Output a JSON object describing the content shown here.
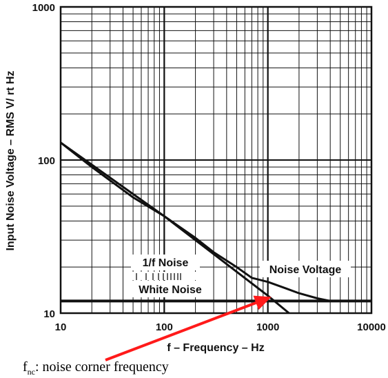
{
  "chart_data": {
    "type": "line",
    "xlabel": "f – Frequency – Hz",
    "ylabel": "Input Noise Voltage – RMS V/ rt Hz",
    "x_scale": "log",
    "y_scale": "log",
    "xlim": [
      10,
      10000
    ],
    "ylim": [
      10,
      1000
    ],
    "grid": true,
    "x_ticks": [
      "10",
      "100",
      "1000",
      "10000"
    ],
    "y_ticks": [
      "10",
      "100",
      "1000"
    ],
    "series": [
      {
        "name": "Noise Voltage",
        "x": [
          10,
          20,
          50,
          100,
          200,
          300,
          500,
          700,
          1000,
          1500,
          2000,
          3000,
          4000,
          10000
        ],
        "y": [
          130,
          90,
          57,
          43,
          31,
          25,
          20,
          17,
          16,
          14.5,
          13.5,
          12.5,
          12,
          12
        ]
      },
      {
        "name": "1/f Noise",
        "x": [
          10,
          100,
          1000,
          1600
        ],
        "y": [
          130,
          43,
          13,
          10
        ]
      },
      {
        "name": "White Noise",
        "x": [
          10,
          10000
        ],
        "y": [
          12,
          12
        ]
      }
    ],
    "annotations": {
      "one_over_f": "1/f Noise",
      "white_noise": "White Noise",
      "noise_voltage": "Noise Voltage"
    },
    "arrow": {
      "color": "#ff1a1a",
      "from": [
        75,
        12500
      ],
      "to": [
        1150,
        12
      ]
    }
  },
  "caption": {
    "prefix": "f",
    "subscript": "nc",
    "text": ": noise corner frequency"
  }
}
